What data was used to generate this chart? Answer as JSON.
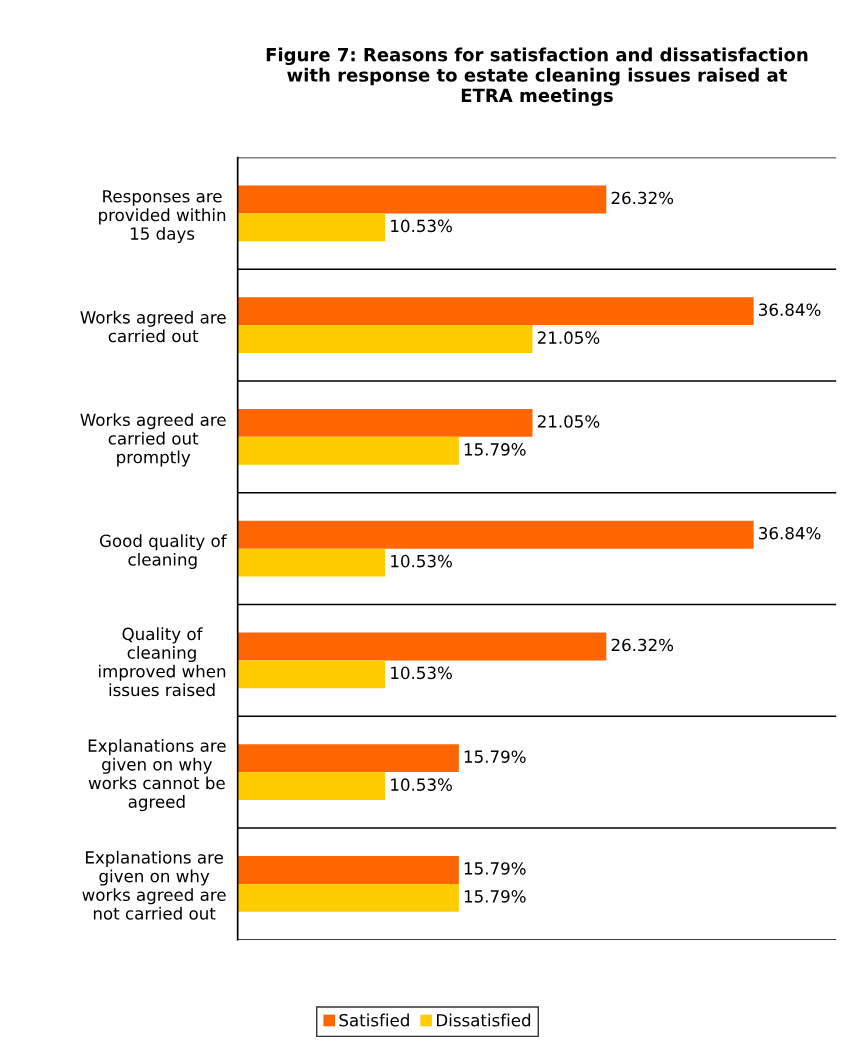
{
  "chart_data": {
    "type": "bar",
    "orientation": "horizontal",
    "title": "Figure 7: Reasons for satisfaction and dissatisfaction\nwith response to estate cleaning issues raised at\nETRA meetings",
    "categories": [
      "Responses are\nprovided within\n15 days",
      "Works agreed are\ncarried out",
      "Works agreed are\ncarried out\npromptly",
      "Good quality of\ncleaning",
      "Quality of\ncleaning\nimproved when\nissues raised",
      "Explanations are\ngiven on why\nworks cannot be\nagreed",
      "Explanations are\ngiven on why\nworks agreed are\nnot carried out"
    ],
    "series": [
      {
        "name": "Satisfied",
        "color": "#ff6600",
        "values": [
          26.32,
          36.84,
          21.05,
          36.84,
          26.32,
          15.79,
          15.79
        ],
        "value_labels": [
          "26.32%",
          "36.84%",
          "21.05%",
          "36.84%",
          "26.32%",
          "15.79%",
          "15.79%"
        ]
      },
      {
        "name": "Dissatisfied",
        "color": "#ffcc00",
        "values": [
          10.53,
          21.05,
          15.79,
          10.53,
          10.53,
          10.53,
          15.79
        ],
        "value_labels": [
          "10.53%",
          "21.05%",
          "15.79%",
          "10.53%",
          "10.53%",
          "10.53%",
          "15.79%"
        ]
      }
    ],
    "grid": "y",
    "legend": "bottom"
  }
}
